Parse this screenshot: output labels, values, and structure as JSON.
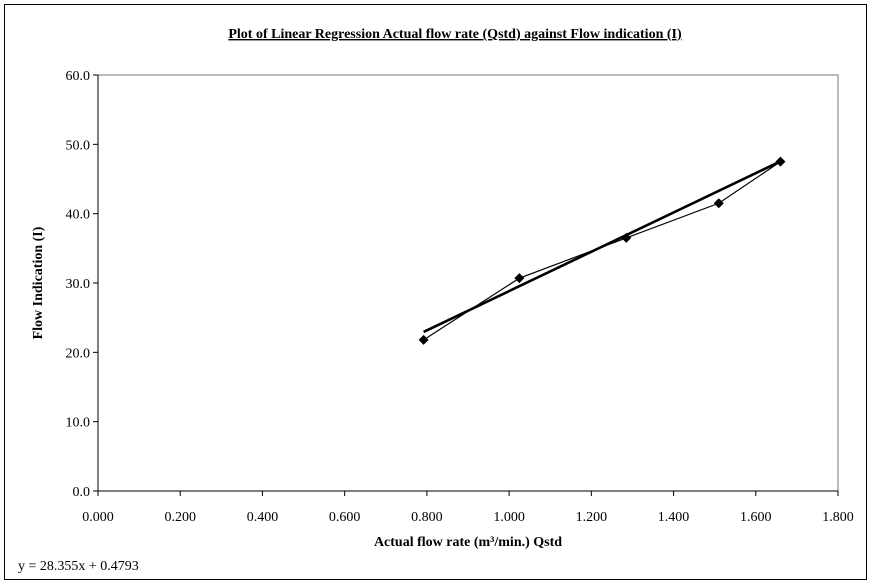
{
  "chart_data": {
    "type": "scatter",
    "title": "Plot of Linear Regression Actual flow rate (Qstd) against Flow indication (I)",
    "xlabel": "Actual flow rate (m³/min.) Qstd",
    "ylabel": "Flow Indication (I)",
    "xlim": [
      0,
      1.8
    ],
    "ylim": [
      0,
      60
    ],
    "x_ticks": [
      "0.000",
      "0.200",
      "0.400",
      "0.600",
      "0.800",
      "1.000",
      "1.200",
      "1.400",
      "1.600",
      "1.800"
    ],
    "y_ticks": [
      "0.0",
      "10.0",
      "20.0",
      "30.0",
      "40.0",
      "50.0",
      "60.0"
    ],
    "series": [
      {
        "x": [
          0.792,
          1.025,
          1.285,
          1.51,
          1.66
        ],
        "y": [
          21.8,
          30.7,
          36.5,
          41.5,
          47.5
        ],
        "marker": "diamond",
        "line": true
      }
    ],
    "trendline": {
      "slope": 28.355,
      "intercept": 0.4793,
      "x_range": [
        0.792,
        1.66
      ],
      "equation": "y = 28.355x + 0.4793"
    },
    "grid": false,
    "legend": "none"
  }
}
